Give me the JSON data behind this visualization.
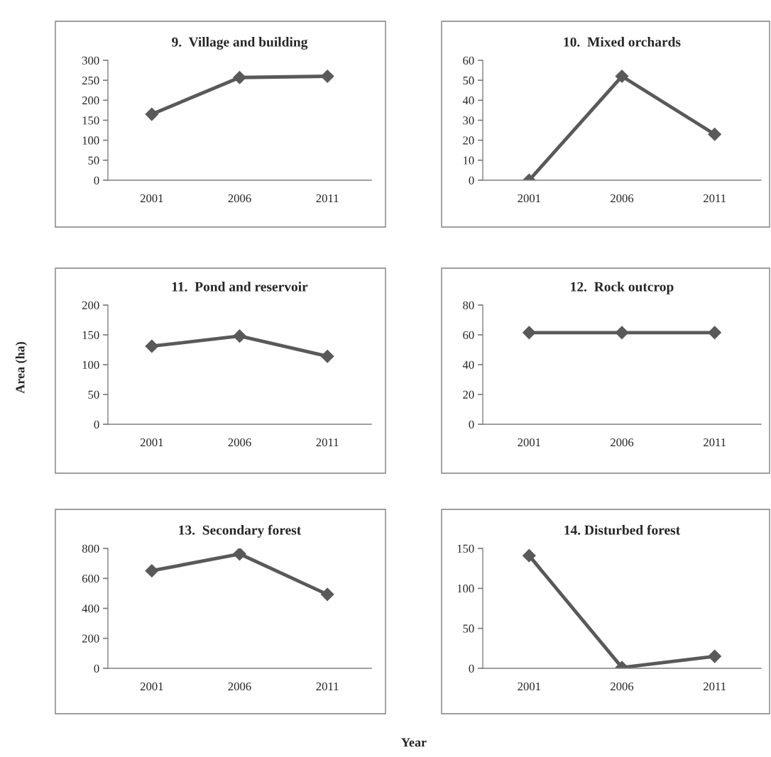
{
  "chart_data": [
    {
      "type": "line",
      "title": "9.  Village and building",
      "categories": [
        "2001",
        "2006",
        "2011"
      ],
      "series": [
        {
          "color": "#595959",
          "values": [
            165,
            257,
            260
          ]
        }
      ],
      "ylim": [
        0,
        300
      ],
      "yticks": [
        0,
        50,
        100,
        150,
        200,
        250,
        300
      ],
      "marker": "diamond",
      "line_style": "solid",
      "grid": false
    },
    {
      "type": "line",
      "title": "10.  Mixed orchards",
      "categories": [
        "2001",
        "2006",
        "2011"
      ],
      "series": [
        {
          "color": "#595959",
          "values": [
            0,
            52,
            23
          ]
        }
      ],
      "ylim": [
        0,
        60
      ],
      "yticks": [
        0,
        10,
        20,
        30,
        40,
        50,
        60
      ],
      "marker": "diamond",
      "line_style": "solid",
      "grid": false
    },
    {
      "type": "line",
      "title": "11.  Pond and reservoir",
      "ylabel": "Area (ha)",
      "categories": [
        "2001",
        "2006",
        "2011"
      ],
      "series": [
        {
          "color": "#595959",
          "values": [
            131,
            148,
            114
          ]
        }
      ],
      "ylim": [
        0,
        200
      ],
      "yticks": [
        0,
        50,
        100,
        150,
        200
      ],
      "marker": "diamond",
      "line_style": "solid",
      "grid": false
    },
    {
      "type": "line",
      "title": "12.  Rock outcrop",
      "categories": [
        "2001",
        "2006",
        "2011"
      ],
      "series": [
        {
          "color": "#595959",
          "values": [
            61.5,
            61.5,
            61.5
          ]
        }
      ],
      "ylim": [
        0,
        80
      ],
      "yticks": [
        0,
        20,
        40,
        60,
        80
      ],
      "marker": "diamond",
      "line_style": "solid",
      "grid": false
    },
    {
      "type": "line",
      "title": "13.  Secondary forest",
      "xlabel": "Year",
      "categories": [
        "2001",
        "2006",
        "2011"
      ],
      "series": [
        {
          "color": "#595959",
          "values": [
            651,
            763,
            493
          ]
        }
      ],
      "ylim": [
        0,
        800
      ],
      "yticks": [
        0,
        200,
        400,
        600,
        800
      ],
      "marker": "diamond",
      "line_style": "solid",
      "grid": false
    },
    {
      "type": "line",
      "title": "14. Disturbed forest",
      "categories": [
        "2001",
        "2006",
        "2011"
      ],
      "series": [
        {
          "color": "#595959",
          "values": [
            141,
            1,
            15
          ]
        }
      ],
      "ylim": [
        0,
        150
      ],
      "yticks": [
        0,
        50,
        100,
        150
      ],
      "marker": "diamond",
      "line_style": "solid",
      "grid": false
    }
  ]
}
